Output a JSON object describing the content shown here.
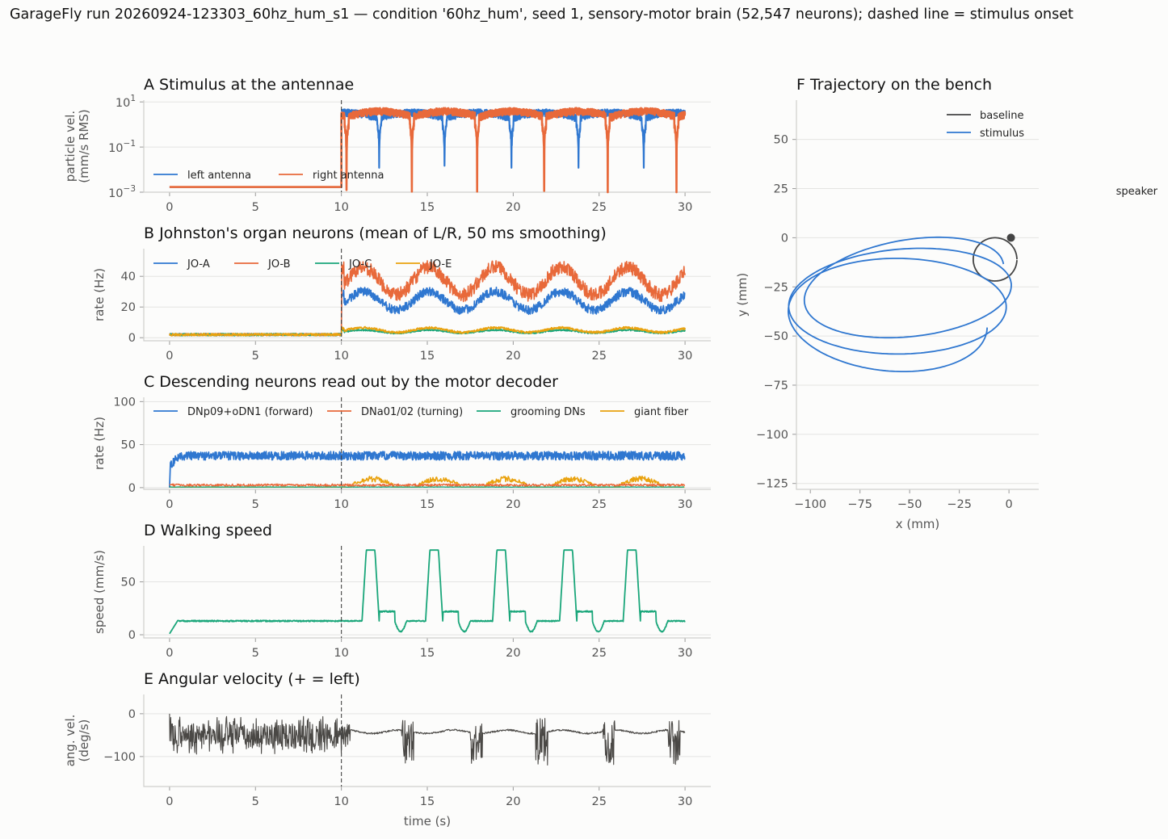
{
  "figure": {
    "title": "GarageFly run 20260924-123303_60hz_hum_s1 — condition '60hz_hum', seed 1, sensory-motor brain (52,547 neurons); dashed line = stimulus onset",
    "stimulus_onset_s": 10
  },
  "chart_data": [
    {
      "id": "A",
      "type": "line",
      "title": "A  Stimulus at the antennae",
      "ylabel": [
        "particle vel.",
        "(mm/s RMS)"
      ],
      "xlabel": "",
      "yscale": "log",
      "xlim": [
        -1.5,
        31.5
      ],
      "ylim": [
        0.001,
        12
      ],
      "xticks": [
        0,
        5,
        10,
        15,
        20,
        25,
        30
      ],
      "yticks": [
        {
          "v": 10,
          "base": "10",
          "exp": "1"
        },
        {
          "v": 0.1,
          "base": "10",
          "exp": "−1"
        },
        {
          "v": 0.001,
          "base": "10",
          "exp": "−3"
        }
      ],
      "legend_position": "lower-left",
      "series": [
        {
          "name": "left antenna",
          "color": "#2f77d0",
          "baseline": 0.0017,
          "peak": 3.5,
          "beat_dips_s": [
            12.2,
            16.0,
            19.9,
            23.8,
            27.6
          ],
          "min": 0.012
        },
        {
          "name": "right antenna",
          "color": "#e8693a",
          "baseline": 0.0017,
          "peak": 4.0,
          "beat_dips_s": [
            10.3,
            14.1,
            17.9,
            21.8,
            25.5,
            29.5
          ],
          "min": 0.001
        }
      ]
    },
    {
      "id": "B",
      "type": "line",
      "title": "B  Johnston's organ neurons (mean of L/R, 50 ms smoothing)",
      "ylabel": [
        "rate (Hz)"
      ],
      "xlabel": "",
      "xlim": [
        -1.5,
        31.5
      ],
      "ylim": [
        -2,
        58
      ],
      "xticks": [
        0,
        5,
        10,
        15,
        20,
        25,
        30
      ],
      "yticks": [
        0,
        20,
        40
      ],
      "legend_position": "top-left",
      "series": [
        {
          "name": "JO-A",
          "color": "#2f77d0",
          "baseline": 2,
          "stim_mean": 24,
          "stim_amp": 6
        },
        {
          "name": "JO-B",
          "color": "#e8693a",
          "baseline": 2,
          "stim_mean": 37,
          "stim_amp": 9
        },
        {
          "name": "JO-C",
          "color": "#1aa67a",
          "baseline": 2,
          "stim_mean": 4,
          "stim_amp": 1
        },
        {
          "name": "JO-E",
          "color": "#e9a20e",
          "baseline": 2,
          "stim_mean": 5,
          "stim_amp": 1.5
        }
      ]
    },
    {
      "id": "C",
      "type": "line",
      "title": "C  Descending neurons read out by the motor decoder",
      "ylabel": [
        "rate (Hz)"
      ],
      "xlabel": "",
      "xlim": [
        -1.5,
        31.5
      ],
      "ylim": [
        -2,
        105
      ],
      "xticks": [
        0,
        5,
        10,
        15,
        20,
        25,
        30
      ],
      "yticks": [
        0,
        50,
        100
      ],
      "legend_position": "top",
      "series": [
        {
          "name": "DNp09+oDN1 (forward)",
          "color": "#2f77d0",
          "level": 37
        },
        {
          "name": "DNa01/02 (turning)",
          "color": "#e8693a",
          "level": 3
        },
        {
          "name": "grooming DNs",
          "color": "#1aa67a",
          "level": 0.5
        },
        {
          "name": "giant fiber",
          "color": "#e9a20e",
          "level": 8
        }
      ]
    },
    {
      "id": "D",
      "type": "line",
      "title": "D  Walking speed",
      "ylabel": [
        "speed (mm/s)"
      ],
      "xlabel": "",
      "xlim": [
        -1.5,
        31.5
      ],
      "ylim": [
        -3,
        84
      ],
      "xticks": [
        0,
        5,
        10,
        15,
        20,
        25,
        30
      ],
      "yticks": [
        0,
        50
      ],
      "series": [
        {
          "name": "",
          "color": "#1aa67a",
          "baseline": 13,
          "burst_peak": 80,
          "burst_starts_s": [
            11.2,
            14.9,
            18.8,
            22.7,
            26.4
          ]
        }
      ]
    },
    {
      "id": "E",
      "type": "line",
      "title": "E  Angular velocity (+ = left)",
      "ylabel": [
        "ang. vel.",
        "(deg/s)"
      ],
      "xlabel": "time (s)",
      "xlim": [
        -1.5,
        31.5
      ],
      "ylim": [
        -170,
        45
      ],
      "xticks": [
        0,
        5,
        10,
        15,
        20,
        25,
        30
      ],
      "yticks": [
        0,
        -100
      ],
      "series": [
        {
          "name": "",
          "color": "#4a4845",
          "baseline_mean": -50,
          "baseline_amp": 45,
          "stim_level": -42,
          "burst_starts_s": [
            13.5,
            17.5,
            21.3,
            25.2,
            29.0
          ]
        }
      ]
    },
    {
      "id": "F",
      "type": "line",
      "title": "F  Trajectory on the bench",
      "ylabel": [
        "y (mm)"
      ],
      "xlabel": "x (mm)",
      "xlim": [
        -107,
        15
      ],
      "ylim": [
        -128,
        70
      ],
      "xticks": [
        -100,
        -75,
        -50,
        -25,
        0
      ],
      "yticks": [
        50,
        25,
        0,
        -25,
        -50,
        -75,
        -100,
        -125
      ],
      "annotation": "speaker",
      "legend_position": "top-right",
      "series": [
        {
          "name": "baseline",
          "color": "#444444",
          "shape": "small circle near origin",
          "center": [
            -7,
            -11
          ],
          "radius": 11
        },
        {
          "name": "stimulus",
          "color": "#2f77d0",
          "shape": "looping path",
          "loops": 3
        }
      ],
      "start_marker": [
        1,
        0
      ]
    }
  ]
}
